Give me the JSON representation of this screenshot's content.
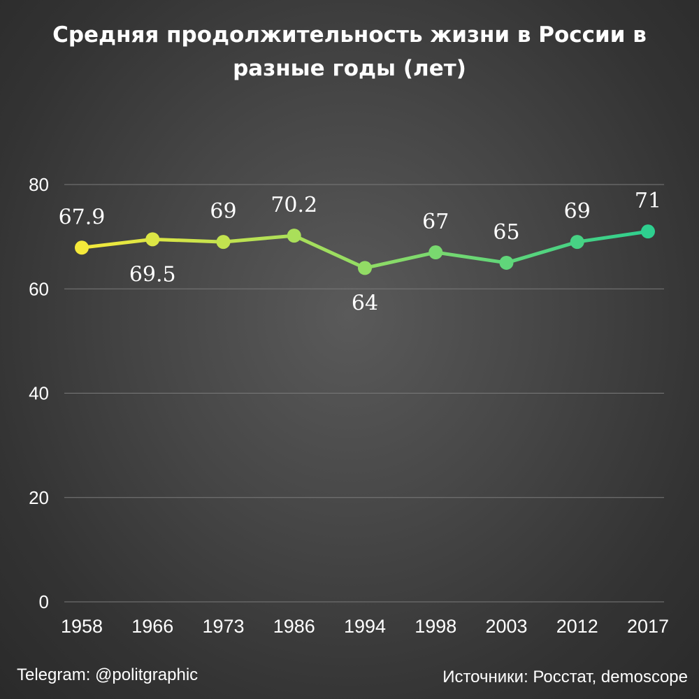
{
  "title": "Средняя продолжительность жизни в России в разные годы (лет)",
  "footer": {
    "left": "Telegram: @politgraphic",
    "right": "Источники: Росстат, demoscope"
  },
  "colors": {
    "start": "#f5e93a",
    "end": "#2ecf8f",
    "grid": "#7a7a7a"
  },
  "chart_data": {
    "type": "line",
    "title": "Средняя продолжительность жизни в России в разные годы (лет)",
    "categories": [
      "1958",
      "1966",
      "1973",
      "1986",
      "1994",
      "1998",
      "2003",
      "2012",
      "2017"
    ],
    "series": [
      {
        "values": [
          67.9,
          69.5,
          69,
          70.2,
          64,
          67,
          65,
          69,
          71
        ],
        "labels": [
          "67.9",
          "69.5",
          "69",
          "70.2",
          "64",
          "67",
          "65",
          "69",
          "71"
        ],
        "label_positions": [
          "above",
          "below",
          "above",
          "above",
          "below",
          "above",
          "above",
          "above",
          "above"
        ]
      }
    ],
    "yticks": [
      "0",
      "20",
      "40",
      "60",
      "80"
    ],
    "ylim": [
      0,
      80
    ],
    "grid": true,
    "legend": "none"
  }
}
